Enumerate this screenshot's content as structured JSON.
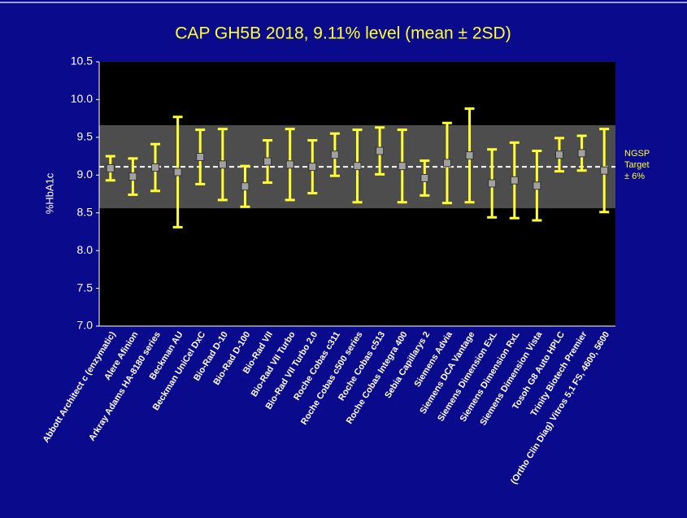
{
  "chart_data": {
    "type": "errorbar",
    "title": "CAP GH5B 2018, 9.11% level (mean ± 2SD)",
    "y_label": "%HbA1c",
    "categories": [
      "Abbott Architect c (enzymatic)",
      "Alere Afinion",
      "Arkray Adams HA-8180 series",
      "Beckman AU",
      "Beckman UniCel DxC",
      "Bio-Rad D-10",
      "Bio-Rad D-100",
      "Bio-Rad VII",
      "Bio-Rad VII Turbo",
      "Bio-Rad VII Turbo 2.0",
      "Roche Cobas c311",
      "Roche Cobas c500 series",
      "Roche Cobas c513",
      "Roche Cobas Integra 400",
      "Sebia Capillarys 2",
      "Siemens Advia",
      "Siemens DCA Vantage",
      "Siemens Dimension ExL",
      "Siemens Dimension RxL",
      "Siemens Dimension Vista",
      "Tosoh G8 Auto HPLC",
      "Trinity Biotech Premier",
      "(Ortho Clin Diag) Vitros 5,1 FS, 4600, 5600"
    ],
    "values": [
      9.09,
      8.98,
      9.1,
      9.04,
      9.24,
      9.14,
      8.85,
      9.18,
      9.14,
      9.11,
      9.27,
      9.12,
      9.32,
      9.12,
      8.96,
      9.16,
      9.26,
      8.89,
      8.93,
      8.86,
      9.27,
      9.29,
      9.06
    ],
    "errors": [
      0.16,
      0.24,
      0.31,
      0.73,
      0.36,
      0.47,
      0.27,
      0.28,
      0.47,
      0.35,
      0.28,
      0.48,
      0.31,
      0.48,
      0.23,
      0.53,
      0.62,
      0.45,
      0.5,
      0.46,
      0.22,
      0.23,
      0.55
    ],
    "color": "#ffff33",
    "target": 9.11,
    "band": [
      8.56,
      9.66
    ],
    "annotation": [
      "NGSP",
      "Target",
      "± 6%"
    ],
    "ylim": [
      7.0,
      10.5
    ],
    "yticks": [
      {
        "value": 7,
        "label": "7.0"
      },
      7.5,
      {
        "value": 8,
        "label": "8.0"
      },
      8.5,
      {
        "value": 9,
        "label": "9.0"
      },
      9.5,
      {
        "value": 10,
        "label": "10.0"
      },
      10.5
    ]
  }
}
